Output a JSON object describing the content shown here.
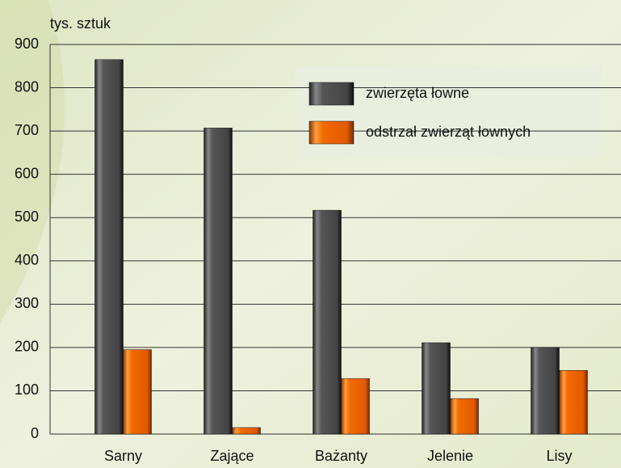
{
  "chart_data": {
    "type": "bar",
    "y_label": "tys. sztuk",
    "categories": [
      "Sarny",
      "Zające",
      "Bażanty",
      "Jelenie",
      "Lisy"
    ],
    "series": [
      {
        "name": "zwierzęta łowne",
        "color": "#4a4a4a",
        "values": [
          865,
          707,
          517,
          211,
          200
        ]
      },
      {
        "name": "odstrzał zwierząt łownych",
        "color": "#f26a00",
        "values": [
          195,
          15,
          128,
          82,
          147
        ]
      }
    ],
    "ylim": [
      0,
      900
    ],
    "yticks": [
      0,
      100,
      200,
      300,
      400,
      500,
      600,
      700,
      800,
      900
    ],
    "grid": true
  }
}
